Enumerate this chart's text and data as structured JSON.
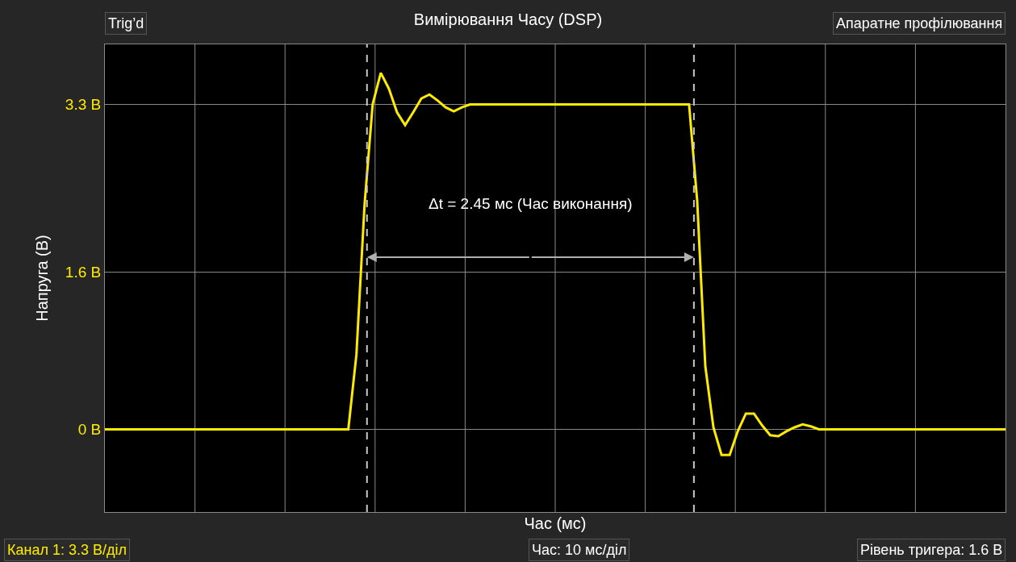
{
  "chart_data": {
    "type": "line",
    "title": "Вимірювання Часу (DSP)",
    "xlabel": "Час (мс)",
    "ylabel": "Напруга (В)",
    "categories": [
      null,
      null,
      null,
      null,
      null,
      null,
      null,
      null,
      null,
      null,
      null,
      null,
      null,
      null,
      null,
      null,
      null,
      null,
      null,
      null,
      null,
      null,
      null,
      null,
      null,
      null,
      null,
      null,
      null,
      null,
      null,
      null,
      null,
      null,
      null,
      null,
      null,
      null,
      null,
      null,
      null,
      null,
      null,
      null,
      null,
      null,
      null,
      null,
      null,
      null,
      null,
      null,
      null,
      null,
      null,
      null,
      null,
      null,
      null,
      null,
      null,
      null,
      null,
      null,
      null,
      null,
      null,
      null,
      null,
      null,
      null,
      null,
      null,
      null,
      null,
      null,
      null,
      null,
      null,
      null,
      null,
      null,
      null,
      null,
      null,
      null,
      null,
      null,
      null,
      null,
      null,
      null,
      null,
      null,
      null,
      null,
      null,
      null,
      null,
      null,
      null,
      null,
      null,
      null,
      null,
      null,
      null,
      null,
      null,
      null,
      null,
      null
    ],
    "series": [
      {
        "color": "#ffeb00",
        "values": [
          0,
          0,
          0,
          0,
          0,
          0,
          0,
          0,
          0,
          0,
          0,
          0,
          0,
          0,
          0,
          0,
          0,
          0,
          0,
          0,
          0,
          0,
          0,
          0,
          0,
          0,
          0,
          0,
          0,
          0,
          0,
          0.76,
          2.28,
          3.3,
          3.62,
          3.46,
          3.22,
          3.09,
          3.22,
          3.36,
          3.4,
          3.34,
          3.27,
          3.23,
          3.27,
          3.3,
          3.3,
          3.3,
          3.3,
          3.3,
          3.3,
          3.3,
          3.3,
          3.3,
          3.3,
          3.3,
          3.3,
          3.3,
          3.3,
          3.3,
          3.3,
          3.3,
          3.3,
          3.3,
          3.3,
          3.3,
          3.3,
          3.3,
          3.3,
          3.3,
          3.3,
          3.3,
          3.3,
          2.32,
          0.64,
          0.02,
          -0.26,
          -0.26,
          -0.02,
          0.16,
          0.16,
          0.04,
          -0.06,
          -0.07,
          -0.02,
          0.02,
          0.05,
          0.03,
          0,
          0,
          0,
          0,
          0,
          0,
          0,
          0,
          0,
          0,
          0,
          0,
          0,
          0,
          0,
          0,
          0,
          0,
          0,
          0,
          0,
          0,
          0,
          0
        ]
      }
    ],
    "ylim": [
      -0.84,
      3.91
    ],
    "yticks": [
      {
        "value": 0,
        "label": "0 В"
      },
      {
        "value": 1.6,
        "label": "1.6 В"
      },
      {
        "value": 3.3,
        "label": "3.3 В"
      }
    ],
    "grid": true,
    "marker": "none",
    "line_style": "solid",
    "annotations": [
      "Δt = 2.45 мс (Час виконання)",
      "Trig’d",
      "Апаратне профілювання",
      "Канал 1: 3.3 В/діл",
      "Час: 10 мс/діл",
      "Рівень тригера: 1.6 В"
    ]
  }
}
